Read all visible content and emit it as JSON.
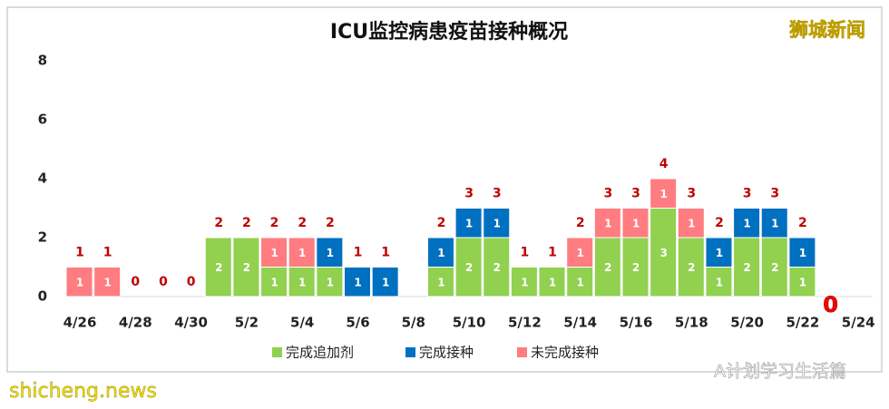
{
  "chart_data": {
    "type": "stacked_bar",
    "title": "ICU监控病患疫苗接种概况",
    "categories": [
      "4/26",
      null,
      "4/28",
      null,
      "4/30",
      null,
      "5/2",
      null,
      "5/4",
      null,
      "5/6",
      null,
      "5/8",
      null,
      "5/10",
      null,
      "5/12",
      null,
      "5/14",
      null,
      "5/16",
      null,
      "5/18",
      null,
      "5/20",
      null,
      "5/22",
      null,
      "5/24"
    ],
    "series": [
      {
        "name": "完成追加剂",
        "color": "#92d050",
        "values": [
          null,
          null,
          null,
          null,
          null,
          2,
          2,
          1,
          1,
          1,
          null,
          null,
          null,
          1,
          2,
          2,
          1,
          1,
          1,
          2,
          2,
          3,
          2,
          1,
          2,
          2,
          1,
          null,
          null
        ]
      },
      {
        "name": "完成接种",
        "color": "#0070c0",
        "values": [
          null,
          null,
          null,
          null,
          null,
          null,
          null,
          null,
          null,
          1,
          1,
          1,
          null,
          1,
          1,
          1,
          null,
          null,
          null,
          null,
          null,
          null,
          null,
          1,
          1,
          1,
          1,
          null,
          null
        ]
      },
      {
        "name": "未完成接种",
        "color": "#ff7c80",
        "values": [
          1,
          1,
          null,
          null,
          null,
          null,
          null,
          1,
          1,
          null,
          null,
          null,
          null,
          null,
          null,
          null,
          null,
          null,
          1,
          1,
          1,
          1,
          1,
          null,
          null,
          null,
          null,
          null,
          null
        ]
      }
    ],
    "totals": [
      1,
      1,
      0,
      0,
      0,
      2,
      2,
      2,
      2,
      2,
      1,
      1,
      null,
      2,
      3,
      3,
      1,
      1,
      2,
      3,
      3,
      4,
      3,
      2,
      3,
      3,
      2,
      0,
      null
    ],
    "ylim": [
      0,
      8
    ],
    "yticks": [
      0,
      2,
      4,
      6,
      8
    ],
    "watermarks": [
      "狮城新闻",
      "shicheng.news",
      "A计划学习生活篇"
    ]
  }
}
